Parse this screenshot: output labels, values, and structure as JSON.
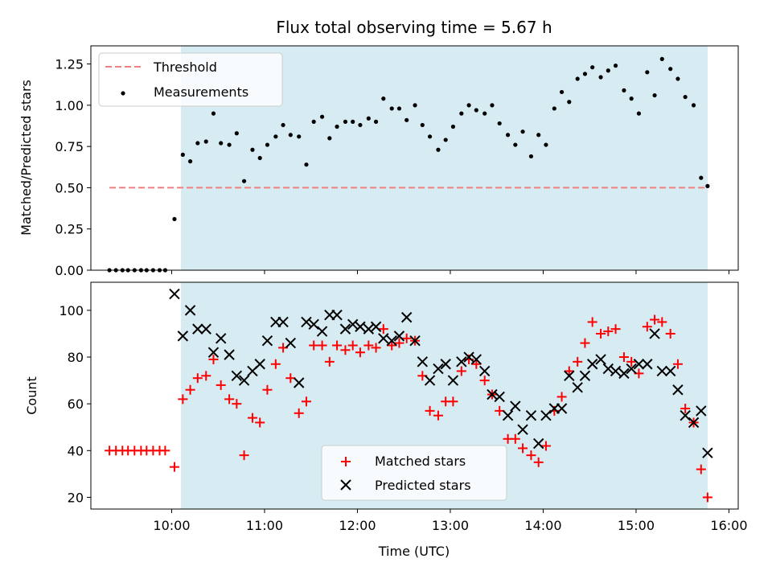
{
  "chart_data": [
    {
      "type": "scatter",
      "title": "Flux total observing time = 5.67 h",
      "xlabel": "",
      "ylabel": "Matched/Predicted stars",
      "ylim": [
        0,
        1.36
      ],
      "yticks": [
        0.0,
        0.25,
        0.5,
        0.75,
        1.0,
        1.25
      ],
      "ytick_labels": [
        "0.00",
        "0.25",
        "0.50",
        "0.75",
        "1.00",
        "1.25"
      ],
      "xlim_hours": [
        9.13,
        16.1
      ],
      "shaded_span_hours": [
        10.1,
        15.77
      ],
      "shaded_color": "#add8e6",
      "threshold": {
        "name": "Threshold",
        "value": 0.5,
        "x_from_hours": 9.33,
        "x_to_hours": 15.77,
        "color": "#f08080",
        "style": "dashed"
      },
      "series": [
        {
          "name": "Measurements",
          "color": "#000000",
          "marker": "dot",
          "x_hours": [
            9.33,
            9.4,
            9.47,
            9.53,
            9.6,
            9.67,
            9.73,
            9.8,
            9.87,
            9.93,
            10.03,
            10.12,
            10.2,
            10.28,
            10.37,
            10.45,
            10.53,
            10.62,
            10.7,
            10.78,
            10.87,
            10.95,
            11.03,
            11.12,
            11.2,
            11.28,
            11.37,
            11.45,
            11.53,
            11.62,
            11.7,
            11.78,
            11.87,
            11.95,
            12.03,
            12.12,
            12.2,
            12.28,
            12.37,
            12.45,
            12.53,
            12.62,
            12.7,
            12.78,
            12.87,
            12.95,
            13.03,
            13.12,
            13.2,
            13.28,
            13.37,
            13.45,
            13.53,
            13.62,
            13.7,
            13.78,
            13.87,
            13.95,
            14.03,
            14.12,
            14.2,
            14.28,
            14.37,
            14.45,
            14.53,
            14.62,
            14.7,
            14.78,
            14.87,
            14.95,
            15.03,
            15.12,
            15.2,
            15.28,
            15.37,
            15.45,
            15.53,
            15.62,
            15.7,
            15.77
          ],
          "y": [
            0,
            0,
            0,
            0,
            0,
            0,
            0,
            0,
            0,
            0,
            0.31,
            0.7,
            0.66,
            0.77,
            0.78,
            0.95,
            0.77,
            0.76,
            0.83,
            0.54,
            0.73,
            0.68,
            0.76,
            0.81,
            0.88,
            0.82,
            0.81,
            0.64,
            0.9,
            0.93,
            0.8,
            0.87,
            0.9,
            0.9,
            0.88,
            0.92,
            0.9,
            1.04,
            0.98,
            0.98,
            0.91,
            1.0,
            0.88,
            0.81,
            0.73,
            0.79,
            0.87,
            0.95,
            1.0,
            0.97,
            0.95,
            1.0,
            0.89,
            0.82,
            0.76,
            0.84,
            0.69,
            0.82,
            0.76,
            0.98,
            1.08,
            1.02,
            1.16,
            1.19,
            1.23,
            1.17,
            1.21,
            1.24,
            1.09,
            1.04,
            0.95,
            1.2,
            1.06,
            1.28,
            1.22,
            1.16,
            1.05,
            1.0,
            0.56,
            0.51
          ]
        }
      ],
      "legend_position": "upper left",
      "grid": false
    },
    {
      "type": "scatter",
      "title": "",
      "xlabel": "Time (UTC)",
      "ylabel": "Count",
      "ylim": [
        15,
        112
      ],
      "yticks": [
        20,
        40,
        60,
        80,
        100
      ],
      "ytick_labels": [
        "20",
        "40",
        "60",
        "80",
        "100"
      ],
      "xlim_hours": [
        9.13,
        16.1
      ],
      "xticks_hours": [
        10,
        11,
        12,
        13,
        14,
        15,
        16
      ],
      "xtick_labels": [
        "10:00",
        "11:00",
        "12:00",
        "13:00",
        "14:00",
        "15:00",
        "16:00"
      ],
      "shaded_span_hours": [
        10.1,
        15.77
      ],
      "shaded_color": "#add8e6",
      "series": [
        {
          "name": "Matched stars",
          "color": "#ff0000",
          "marker": "plus",
          "x_hours": [
            9.33,
            9.4,
            9.47,
            9.53,
            9.6,
            9.67,
            9.73,
            9.8,
            9.87,
            9.93,
            10.03,
            10.12,
            10.2,
            10.28,
            10.37,
            10.45,
            10.53,
            10.62,
            10.7,
            10.78,
            10.87,
            10.95,
            11.03,
            11.12,
            11.2,
            11.28,
            11.37,
            11.45,
            11.53,
            11.62,
            11.7,
            11.78,
            11.87,
            11.95,
            12.03,
            12.12,
            12.2,
            12.28,
            12.37,
            12.45,
            12.53,
            12.62,
            12.7,
            12.78,
            12.87,
            12.95,
            13.03,
            13.12,
            13.2,
            13.28,
            13.37,
            13.45,
            13.53,
            13.62,
            13.7,
            13.78,
            13.87,
            13.95,
            14.03,
            14.12,
            14.2,
            14.28,
            14.37,
            14.45,
            14.53,
            14.62,
            14.7,
            14.78,
            14.87,
            14.95,
            15.03,
            15.12,
            15.2,
            15.28,
            15.37,
            15.45,
            15.53,
            15.62,
            15.7,
            15.77
          ],
          "y": [
            40,
            40,
            40,
            40,
            40,
            40,
            40,
            40,
            40,
            40,
            33,
            62,
            66,
            71,
            72,
            79,
            68,
            62,
            60,
            38,
            54,
            52,
            66,
            77,
            84,
            71,
            56,
            61,
            85,
            85,
            78,
            85,
            83,
            85,
            82,
            85,
            84,
            92,
            85,
            86,
            88,
            87,
            72,
            57,
            55,
            61,
            61,
            74,
            79,
            77,
            70,
            64,
            57,
            45,
            45,
            41,
            38,
            35,
            42,
            57,
            63,
            74,
            78,
            86,
            95,
            90,
            91,
            92,
            80,
            78,
            73,
            93,
            96,
            95,
            90,
            77,
            58,
            52,
            32,
            20
          ]
        },
        {
          "name": "Predicted stars",
          "color": "#000000",
          "marker": "x",
          "x_hours": [
            10.03,
            10.12,
            10.2,
            10.28,
            10.37,
            10.45,
            10.53,
            10.62,
            10.7,
            10.78,
            10.87,
            10.95,
            11.03,
            11.12,
            11.2,
            11.28,
            11.37,
            11.45,
            11.53,
            11.62,
            11.7,
            11.78,
            11.87,
            11.95,
            12.03,
            12.12,
            12.2,
            12.28,
            12.37,
            12.45,
            12.53,
            12.62,
            12.7,
            12.78,
            12.87,
            12.95,
            13.03,
            13.12,
            13.2,
            13.28,
            13.37,
            13.45,
            13.53,
            13.62,
            13.7,
            13.78,
            13.87,
            13.95,
            14.03,
            14.12,
            14.2,
            14.28,
            14.37,
            14.45,
            14.53,
            14.62,
            14.7,
            14.78,
            14.87,
            14.95,
            15.03,
            15.12,
            15.2,
            15.28,
            15.37,
            15.45,
            15.53,
            15.62,
            15.7,
            15.77
          ],
          "y": [
            107,
            89,
            100,
            92,
            92,
            82,
            88,
            81,
            72,
            70,
            74,
            77,
            87,
            95,
            95,
            86,
            69,
            95,
            94,
            91,
            98,
            98,
            92,
            94,
            93,
            92,
            93,
            88,
            87,
            89,
            97,
            87,
            78,
            70,
            75,
            77,
            70,
            78,
            80,
            79,
            74,
            64,
            63,
            55,
            59,
            49,
            55,
            43,
            55,
            58,
            58,
            72,
            67,
            72,
            77,
            79,
            75,
            74,
            73,
            75,
            77,
            77,
            90,
            74,
            74,
            66,
            55,
            52,
            57,
            39
          ]
        }
      ],
      "legend_position": "lower center",
      "grid": false
    }
  ]
}
